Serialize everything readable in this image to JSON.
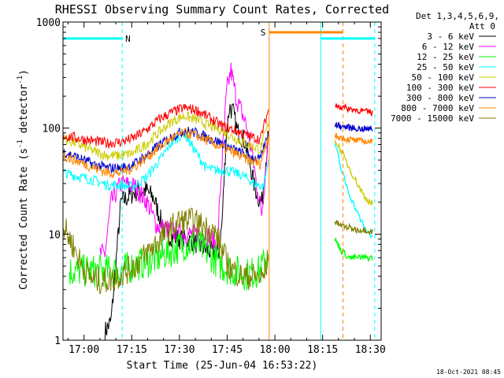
{
  "chart_data": {
    "type": "line",
    "title": "RHESSI Observing Summary Count Rates, Corrected",
    "xlabel": "Start Time (25-Jun-04 16:53:22)",
    "ylabel_main": "Corrected Count Rate (s",
    "ylabel_sup1": "-1",
    "ylabel_mid": " detector",
    "ylabel_sup2": "-1",
    "ylabel_end": ")",
    "x_unit": "minutes since 16:53:22",
    "xlim": [
      0,
      100
    ],
    "ylim": [
      1,
      1000
    ],
    "yscale": "log",
    "xticks": [
      {
        "label": "17:00",
        "x": 6.6
      },
      {
        "label": "17:15",
        "x": 21.6
      },
      {
        "label": "17:30",
        "x": 36.6
      },
      {
        "label": "17:45",
        "x": 51.6
      },
      {
        "label": "18:00",
        "x": 66.6
      },
      {
        "label": "18:15",
        "x": 81.6
      },
      {
        "label": "18:30",
        "x": 96.6
      }
    ],
    "yticks": [
      {
        "label": "1",
        "value": 1
      },
      {
        "label": "10",
        "value": 10
      },
      {
        "label": "100",
        "value": 100
      },
      {
        "label": "1000",
        "value": 1000
      }
    ],
    "legend_header": [
      "Det 1,3,4,5,6,9,",
      "Att 0"
    ],
    "legend_position": "right",
    "series": [
      {
        "name": "3 - 6 keV",
        "color": "#000000",
        "x": [
          13.2,
          15.1,
          18.2,
          22.6,
          26.0,
          28.5,
          32.1,
          36.7,
          41.0,
          44.6,
          48.3,
          49.0,
          50.0,
          51.2,
          52.3,
          53.5,
          54.7,
          57.2,
          59.2,
          60.2,
          61.5,
          62.5,
          64.6
        ],
        "y": [
          1.2,
          1.5,
          20.0,
          25.0,
          26.0,
          22.0,
          10.0,
          9.0,
          8.5,
          7.2,
          6.5,
          6.8,
          13.0,
          75.0,
          160.0,
          140.0,
          95.0,
          75.0,
          40.0,
          28.0,
          22.0,
          20.0,
          90.0
        ]
      },
      {
        "name": "6 - 12 keV",
        "color": "#ff00ff",
        "x": [
          11.5,
          13.2,
          15.1,
          18.2,
          22.6,
          26.5,
          29.5,
          33.5,
          37.0,
          41.5,
          45.0,
          48.5,
          50.0,
          51.5,
          52.8,
          54.5,
          57.5,
          59.5,
          61.5,
          62.5,
          64.6
        ],
        "y": [
          6.5,
          6.5,
          20.0,
          30.0,
          28.0,
          20.0,
          12.0,
          11.0,
          10.0,
          10.0,
          10.0,
          8.0,
          50.0,
          230.0,
          350.0,
          190.0,
          110.0,
          55.0,
          22.0,
          16.0,
          90.0
        ]
      },
      {
        "name": "12 - 25 keV",
        "color": "#00ff00",
        "x": [
          2.0,
          5.0,
          10.0,
          14.0,
          18.0,
          22.0,
          26.0,
          30.0,
          34.0,
          38.0,
          42.0,
          46.0,
          50.0,
          54.0,
          58.0,
          62.0,
          64.6
        ],
        "y": [
          4.5,
          4.5,
          4.5,
          4.5,
          4.5,
          5.0,
          5.5,
          6.0,
          7.0,
          8.0,
          8.0,
          6.5,
          5.0,
          4.5,
          4.2,
          4.5,
          6.5
        ]
      },
      {
        "name": "25 - 50 keV",
        "color": "#00ffff",
        "x": [
          0.0,
          5.0,
          10.0,
          14.0,
          18.0,
          22.0,
          26.0,
          30.0,
          34.0,
          38.0,
          42.0,
          45.0,
          48.0,
          51.0,
          54.0,
          57.0,
          60.0,
          63.0,
          64.6
        ],
        "y": [
          38.0,
          35.0,
          32.0,
          29.0,
          29.0,
          28.0,
          34.0,
          48.0,
          72.0,
          90.0,
          58.0,
          42.0,
          40.0,
          40.0,
          38.0,
          35.0,
          30.0,
          28.0,
          50.0
        ]
      },
      {
        "name": "50 - 100 keV",
        "color": "#cccc00",
        "x": [
          0.0,
          5.0,
          10.0,
          14.0,
          18.0,
          22.0,
          26.0,
          30.0,
          34.0,
          38.0,
          42.0,
          46.0,
          50.0,
          54.0,
          58.0,
          62.0,
          64.6
        ],
        "y": [
          80.0,
          70.0,
          60.0,
          55.0,
          55.0,
          58.0,
          70.0,
          90.0,
          115.0,
          130.0,
          120.0,
          105.0,
          95.0,
          80.0,
          70.0,
          63.0,
          110.0
        ]
      },
      {
        "name": "100 - 300 keV",
        "color": "#ff0000",
        "x": [
          0.0,
          5.0,
          10.0,
          14.0,
          18.0,
          22.0,
          26.0,
          30.0,
          34.0,
          38.0,
          42.0,
          46.0,
          50.0,
          54.0,
          58.0,
          62.0,
          64.6
        ],
        "y": [
          85.0,
          80.0,
          75.0,
          72.0,
          74.0,
          80.0,
          95.0,
          120.0,
          140.0,
          155.0,
          148.0,
          125.0,
          105.0,
          95.0,
          85.0,
          78.0,
          150.0
        ]
      },
      {
        "name": "300 - 800 keV",
        "color": "#0000cc",
        "x": [
          0.0,
          5.0,
          10.0,
          14.0,
          18.0,
          22.0,
          26.0,
          30.0,
          34.0,
          38.0,
          42.0,
          46.0,
          50.0,
          54.0,
          58.0,
          62.0,
          64.6
        ],
        "y": [
          60.0,
          52.0,
          45.0,
          42.0,
          42.0,
          45.0,
          55.0,
          68.0,
          82.0,
          95.0,
          90.0,
          80.0,
          72.0,
          62.0,
          55.0,
          50.0,
          90.0
        ]
      },
      {
        "name": "800 - 7000 keV",
        "color": "#ff8800",
        "x": [
          0.0,
          5.0,
          10.0,
          14.0,
          18.0,
          22.0,
          26.0,
          30.0,
          34.0,
          38.0,
          42.0,
          46.0,
          50.0,
          54.0,
          58.0,
          62.0,
          64.6
        ],
        "y": [
          55.0,
          48.0,
          42.0,
          38.0,
          38.0,
          42.0,
          52.0,
          65.0,
          80.0,
          90.0,
          85.0,
          75.0,
          65.0,
          58.0,
          50.0,
          46.0,
          85.0
        ]
      },
      {
        "name": "7000 - 15000 keV",
        "color": "#808000",
        "x": [
          0.0,
          3.0,
          6.0,
          9.0,
          12.0,
          16.0,
          20.0,
          24.0,
          28.0,
          32.0,
          36.0,
          40.0,
          44.0,
          48.0,
          52.0,
          56.0,
          60.0,
          63.0,
          64.6
        ],
        "y": [
          12.0,
          8.0,
          5.0,
          3.8,
          3.6,
          3.8,
          4.5,
          5.5,
          7.5,
          10.0,
          13.0,
          13.5,
          12.0,
          10.0,
          5.0,
          4.0,
          4.0,
          3.9,
          6.0
        ]
      }
    ],
    "after_gap": {
      "x": [
        85.5,
        87.5,
        90.0,
        92.5,
        95.0,
        97.5
      ],
      "y": {
        "300 - 800 keV": [
          108,
          104,
          101,
          99,
          98,
          97
        ],
        "100 - 300 keV": [
          165,
          158,
          152,
          148,
          143,
          140
        ],
        "800 - 7000 keV": [
          85,
          81,
          78,
          76,
          75,
          74
        ],
        "50 - 100 keV": [
          78,
          60,
          42,
          30,
          22,
          19
        ],
        "25 - 50 keV": [
          72,
          40,
          24,
          16,
          11,
          9.5
        ],
        "7000 - 15000 keV": [
          13,
          12,
          11.5,
          11,
          11,
          10.5
        ],
        "12 - 25 keV": [
          9,
          7,
          6,
          6,
          6,
          6
        ]
      }
    },
    "flags": [
      {
        "label": "N",
        "color": "#00ffff",
        "x0": 0,
        "x1": 18.6,
        "y": 700
      },
      {
        "label": "S",
        "color": "#ff8800",
        "x0": 64.8,
        "x1": 88.0,
        "y": 800
      },
      {
        "label": "",
        "color": "#00ffff",
        "x0": 81.0,
        "x1": 98.0,
        "y": 700
      }
    ],
    "vlines": [
      {
        "x": 0.0,
        "color": "#00ffff",
        "style": "solid"
      },
      {
        "x": 18.6,
        "color": "#00ffff",
        "style": "dashed"
      },
      {
        "x": 64.8,
        "color": "#ff8800",
        "style": "solid"
      },
      {
        "x": 81.0,
        "color": "#00ffff",
        "style": "solid"
      },
      {
        "x": 88.0,
        "color": "#ff8800",
        "style": "dashed"
      },
      {
        "x": 98.0,
        "color": "#00ffff",
        "style": "dashed"
      }
    ],
    "timestamp": "18-Oct-2021 08:45"
  },
  "colors": {
    "background": "#ffffff",
    "axes": "#000000"
  }
}
